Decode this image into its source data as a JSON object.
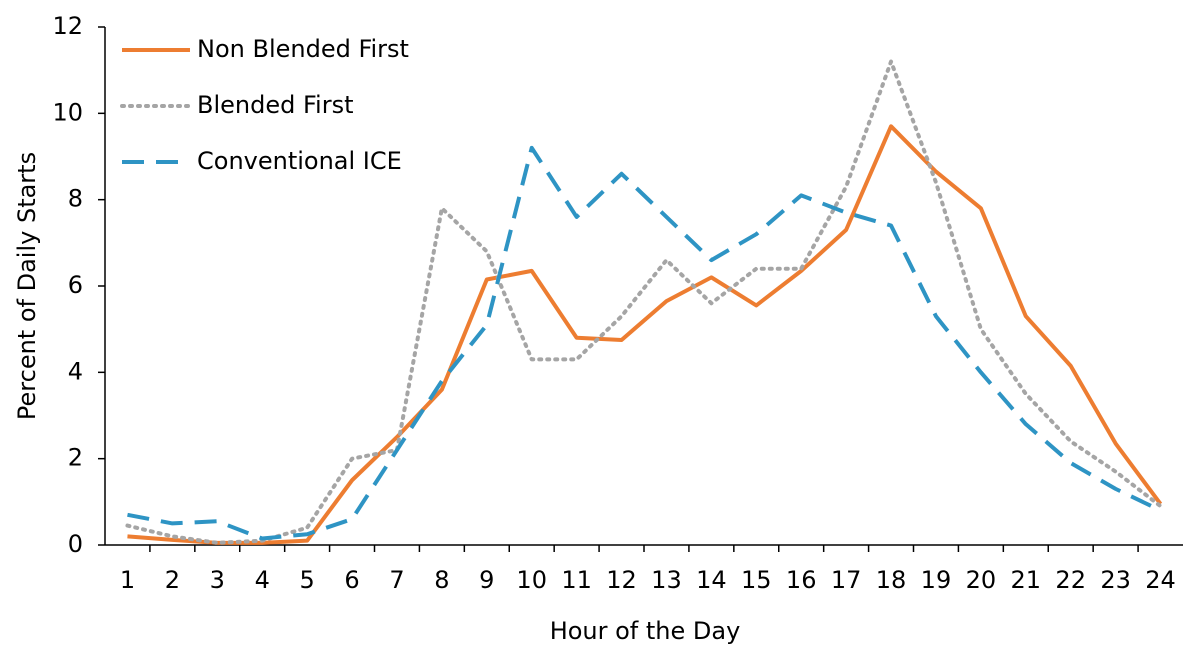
{
  "chart_data": {
    "type": "line",
    "xlabel": "Hour of the Day",
    "ylabel": "Percent of Daily Starts",
    "categories": [
      "1",
      "2",
      "3",
      "4",
      "5",
      "6",
      "7",
      "8",
      "9",
      "10",
      "11",
      "12",
      "13",
      "14",
      "15",
      "16",
      "17",
      "18",
      "19",
      "20",
      "21",
      "22",
      "23",
      "24"
    ],
    "series": [
      {
        "name": "Non Blended First",
        "color": "#ed7d31",
        "dash": "solid",
        "values": [
          0.2,
          0.12,
          0.05,
          0.05,
          0.1,
          1.5,
          2.5,
          3.6,
          6.15,
          6.35,
          4.8,
          4.75,
          5.65,
          6.2,
          5.55,
          6.35,
          7.3,
          9.7,
          8.65,
          7.8,
          5.3,
          4.15,
          2.35,
          0.95
        ]
      },
      {
        "name": "Blended First",
        "color": "#a5a5a5",
        "dash": "dotted",
        "values": [
          0.45,
          0.2,
          0.05,
          0.1,
          0.4,
          2.0,
          2.2,
          7.8,
          6.8,
          4.3,
          4.3,
          5.3,
          6.6,
          5.6,
          6.4,
          6.4,
          8.3,
          11.2,
          8.4,
          5.0,
          3.5,
          2.4,
          1.7,
          0.9
        ]
      },
      {
        "name": "Conventional ICE",
        "color": "#2e94c4",
        "dash": "dashed",
        "values": [
          0.7,
          0.5,
          0.55,
          0.15,
          0.25,
          0.6,
          2.2,
          3.8,
          5.1,
          9.2,
          7.6,
          8.6,
          7.6,
          6.6,
          7.2,
          8.1,
          7.7,
          7.4,
          5.3,
          4.0,
          2.8,
          1.9,
          1.3,
          0.8
        ]
      }
    ],
    "ylim": [
      0,
      12
    ],
    "yticks": [
      0,
      2,
      4,
      6,
      8,
      10,
      12
    ],
    "grid": false,
    "legend": "upper left"
  }
}
